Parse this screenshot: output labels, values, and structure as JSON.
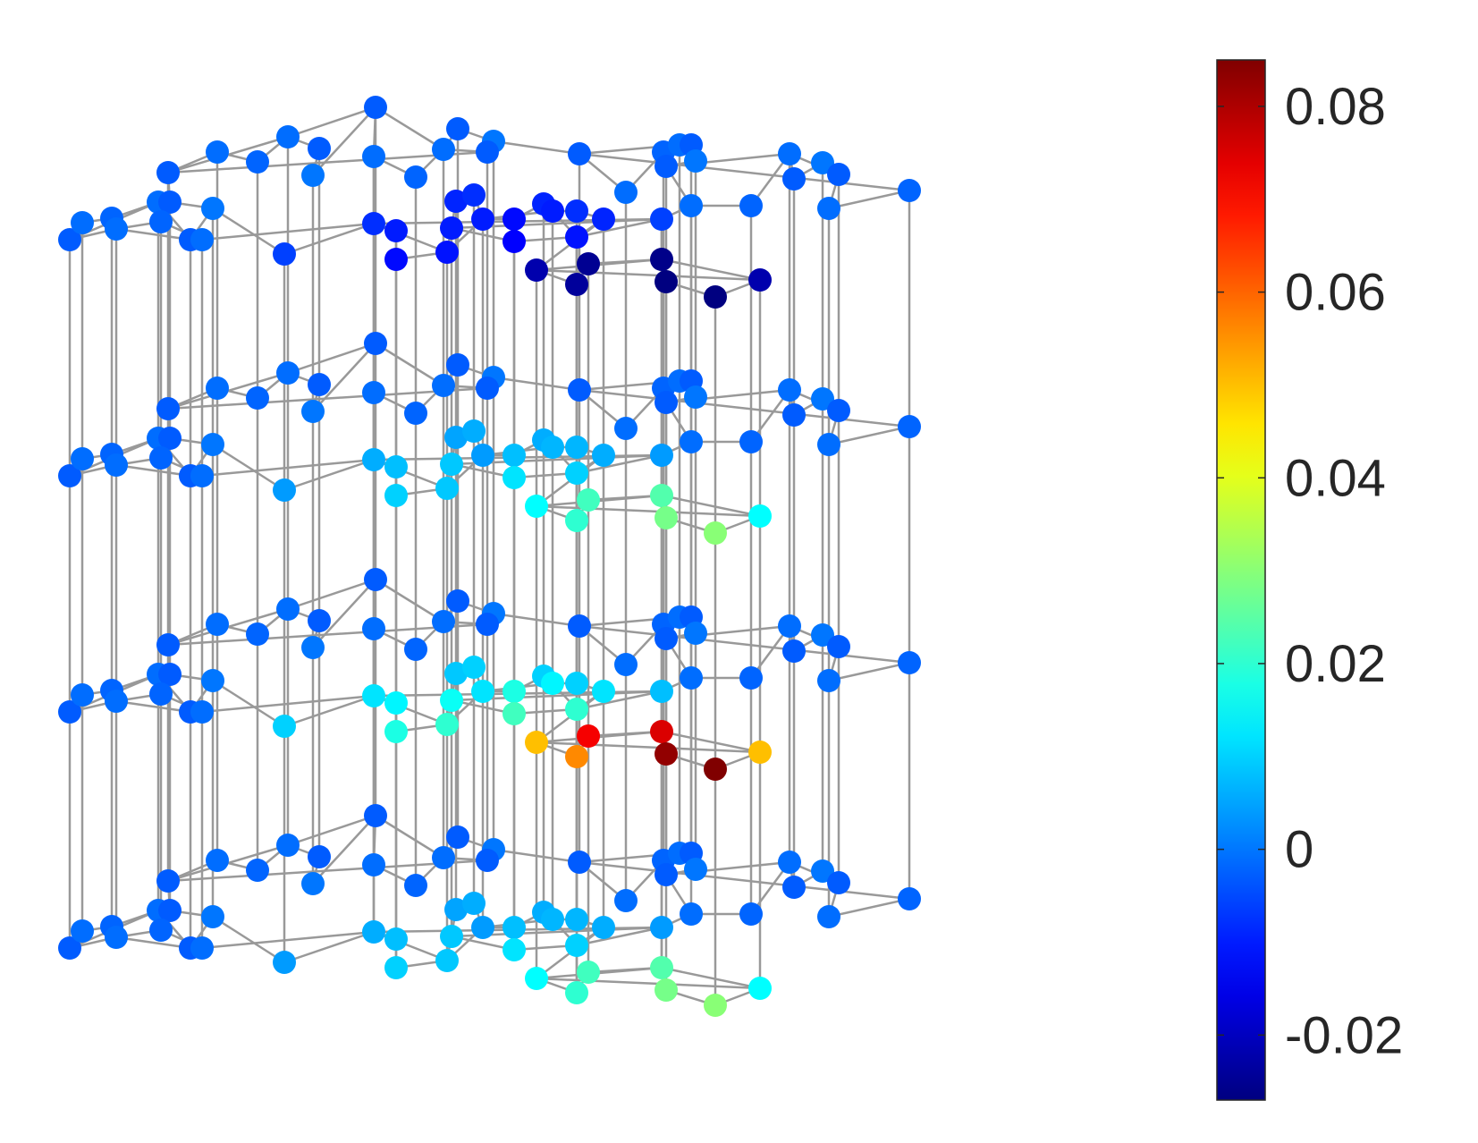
{
  "chart_data": {
    "type": "scatter",
    "subtype": "3d-graph",
    "title": "",
    "xlabel": "",
    "ylabel": "",
    "colormap": "jet",
    "edge_color": "#999999",
    "colorbar": {
      "location": "right",
      "range": [
        -0.027,
        0.085
      ],
      "ticks": [
        -0.02,
        0,
        0.02,
        0.04,
        0.06,
        0.08
      ],
      "tick_labels": [
        "-0.02",
        "0",
        "0.02",
        "0.04",
        "0.06",
        "0.08"
      ]
    },
    "layers": [
      {
        "name": "top",
        "min_value": -0.027,
        "max_value": 0.0
      },
      {
        "name": "upper-middle",
        "min_value": 0.0,
        "max_value": 0.03
      },
      {
        "name": "lower-middle",
        "min_value": 0.0,
        "max_value": 0.085
      },
      {
        "name": "bottom",
        "min_value": 0.0,
        "max_value": 0.03
      }
    ],
    "hotspot_values": [
      {
        "layer": "top",
        "values": [
          -0.022,
          -0.024,
          -0.025,
          -0.026,
          -0.027,
          -0.027
        ]
      },
      {
        "layer": "upper-middle",
        "values": [
          0.015,
          0.02,
          0.022,
          0.024,
          0.028,
          0.03
        ]
      },
      {
        "layer": "lower-middle",
        "values": [
          0.05,
          0.056,
          0.072,
          0.075,
          0.083,
          0.085
        ]
      },
      {
        "layer": "bottom",
        "values": [
          0.015,
          0.02,
          0.022,
          0.024,
          0.028,
          0.03
        ]
      }
    ]
  }
}
